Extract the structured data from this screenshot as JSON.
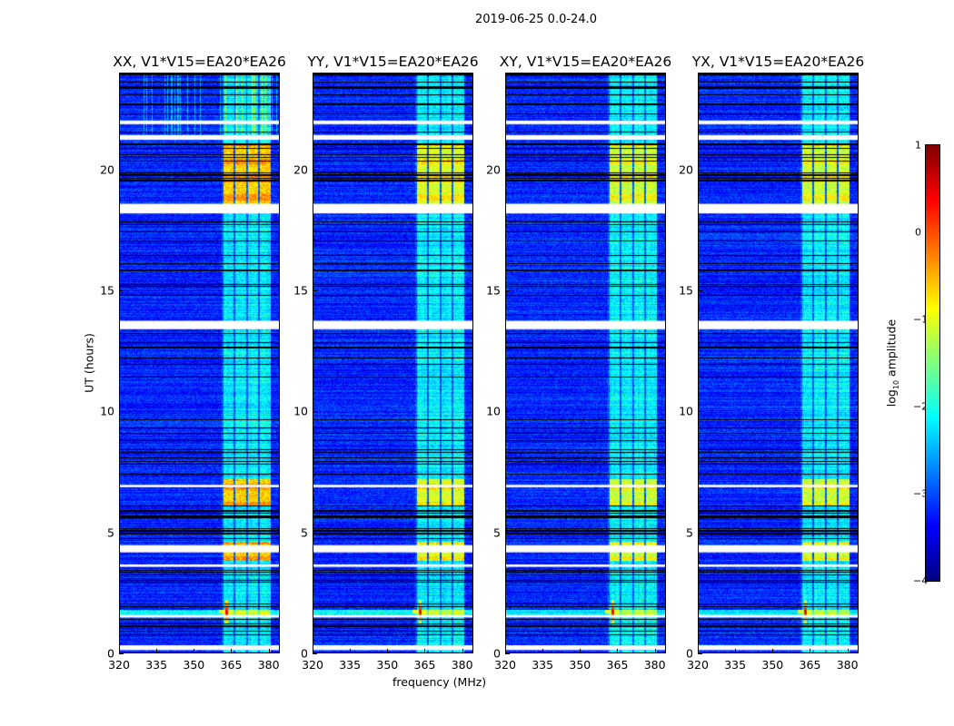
{
  "suptitle": "2019-06-25 0.0-24.0",
  "chart_data": {
    "type": "heatmap",
    "title": "2019-06-25 0.0-24.0",
    "xlabel": "frequency (MHz)",
    "ylabel": "UT (hours)",
    "xlim": [
      320,
      384.5
    ],
    "ylim": [
      0,
      24
    ],
    "xticks": [
      "320",
      "335",
      "350",
      "365",
      "380"
    ],
    "xtick_values": [
      320,
      335,
      350,
      365,
      380
    ],
    "yticks": [
      "0",
      "5",
      "10",
      "15",
      "20"
    ],
    "ytick_values": [
      0,
      5,
      10,
      15,
      20
    ],
    "panels": [
      {
        "title": "XX, V1*V15=EA20*EA26",
        "band_peak": -0.5
      },
      {
        "title": "YY, V1*V15=EA20*EA26",
        "band_peak": -0.9
      },
      {
        "title": "XY, V1*V15=EA20*EA26",
        "band_peak": -1.0
      },
      {
        "title": "YX, V1*V15=EA20*EA26",
        "band_peak": -1.0
      }
    ],
    "colorbar": {
      "label": "log10 amplitude",
      "label_main": "log",
      "label_sub": "10",
      "label_rest": " amplitude",
      "range": [
        -4,
        1
      ],
      "ticks": [
        "1",
        "0",
        "−1",
        "−2",
        "−3",
        "−4"
      ],
      "tick_values": [
        1,
        0,
        -1,
        -2,
        -3,
        -4
      ],
      "colormap": "jet"
    },
    "background_level": -3.2,
    "bright_band_mhz": [
      361,
      381
    ],
    "bright_periods_hours": [
      [
        18.3,
        21.1
      ],
      [
        6.1,
        7.2
      ],
      [
        3.8,
        4.6
      ]
    ],
    "rfi_spike": {
      "freq_mhz": 363,
      "hour": 1.7,
      "level": 0.5
    },
    "flagged_hours": [
      [
        0.1,
        0.3
      ],
      [
        1.45,
        1.55
      ],
      [
        3.55,
        3.65
      ],
      [
        4.15,
        4.45
      ],
      [
        6.85,
        6.95
      ],
      [
        13.4,
        13.75
      ],
      [
        18.2,
        18.6
      ],
      [
        21.25,
        21.45
      ],
      [
        21.9,
        22.05
      ]
    ],
    "flag_color": "#ffffff",
    "gap_line_color": "#000000"
  }
}
